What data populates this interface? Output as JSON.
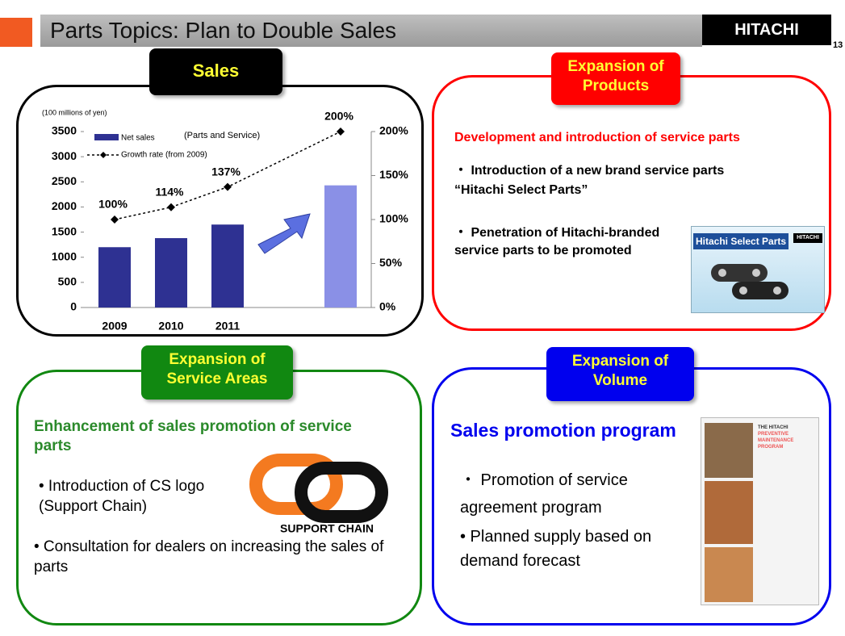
{
  "header": {
    "title": "Parts Topics: Plan to Double Sales",
    "brand": "HITACHI",
    "page": "13"
  },
  "chart_data": {
    "type": "bar",
    "y_axis_label": "(100 millions of yen)",
    "annotation": "(Parts and Service)",
    "categories": [
      "2009",
      "2010",
      "2011",
      null
    ],
    "series": [
      {
        "name": "Net sales",
        "color": "#2e3192",
        "colors": [
          "#2e3192",
          "#2e3192",
          "#2e3192",
          "#8a90e6"
        ],
        "values": [
          1200,
          1380,
          1650,
          2430
        ]
      },
      {
        "name": "Growth rate  (from 2009)",
        "type": "line",
        "axis": "y2",
        "color": "#000000",
        "values": [
          100,
          114,
          137,
          200
        ],
        "value_labels": [
          "100%",
          "114%",
          "137%",
          "200%"
        ]
      }
    ],
    "ylim": [
      0,
      3500
    ],
    "yticks": [
      0,
      500,
      1000,
      1500,
      2000,
      2500,
      3000,
      3500
    ],
    "y2lim": [
      0,
      200
    ],
    "y2ticks": [
      {
        "value": 0,
        "label": "0%"
      },
      {
        "value": 50,
        "label": "50%"
      },
      {
        "value": 100,
        "label": "100%"
      },
      {
        "value": 150,
        "label": "150%"
      },
      {
        "value": 200,
        "label": "200%"
      }
    ]
  },
  "panels": {
    "sales": {
      "label": "Sales"
    },
    "products": {
      "label_lines": [
        "Expansion of",
        "Products"
      ],
      "heading": "Development and introduction of service parts",
      "bullets": [
        "・ Introduction of a new brand service parts “Hitachi Select Parts”",
        "・ Penetration of Hitachi-branded service parts to be promoted"
      ],
      "image_title": "Hitachi Select Parts",
      "image_brand": "HITACHI"
    },
    "service_areas": {
      "label_lines": [
        "Expansion of",
        "Service Areas"
      ],
      "heading": "Enhancement of sales promotion of service parts",
      "bullets": [
        "• Introduction of CS logo (Support Chain)",
        "• Consultation for dealers on increasing the sales of parts"
      ],
      "logo_text": "SUPPORT CHAIN"
    },
    "volume": {
      "label_lines": [
        "Expansion of",
        "Volume"
      ],
      "heading": "Sales promotion program",
      "bullets": [
        "・ Promotion of service agreement program",
        "• Planned supply based on demand forecast"
      ],
      "image_title_lines": [
        "THE HITACHI",
        "PREVENTIVE",
        "MAINTENANCE",
        "PROGRAM"
      ]
    }
  }
}
